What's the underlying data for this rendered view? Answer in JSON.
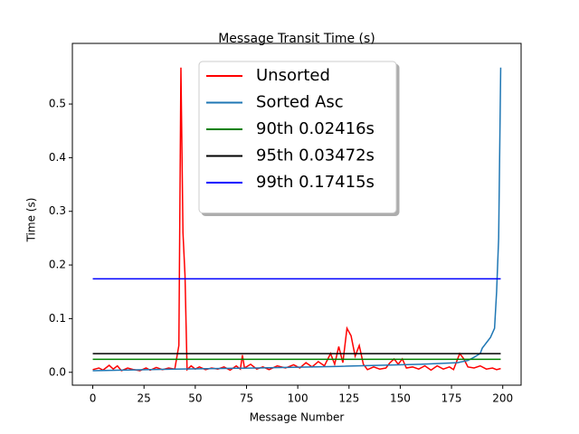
{
  "chart_data": {
    "type": "line",
    "title": "Message Transit Time (s)",
    "x_label": "Message Number",
    "y_label": "Time (s)",
    "xlim": [
      -9.95,
      208.95
    ],
    "xticks": [
      0,
      25,
      50,
      75,
      100,
      125,
      150,
      175,
      200
    ],
    "ylim": [
      -0.024,
      0.613
    ],
    "yticks": [
      {
        "value": 0,
        "label": "0.0"
      },
      0.1,
      0.2,
      0.3,
      0.4,
      0.5
    ],
    "legend": "upper center",
    "series": [
      {
        "name": "Unsorted",
        "color": "#ff0000",
        "x": [
          0,
          3,
          5,
          8,
          10,
          12,
          14,
          17,
          20,
          23,
          26,
          28,
          31,
          34,
          37,
          40,
          42,
          43,
          44,
          45,
          46,
          48,
          50,
          52,
          55,
          58,
          61,
          64,
          67,
          70,
          72,
          73,
          74,
          77,
          80,
          83,
          86,
          90,
          94,
          98,
          101,
          104,
          107,
          110,
          113,
          116,
          118,
          120,
          122,
          124,
          126,
          128,
          130,
          132,
          134,
          137,
          140,
          143,
          145,
          147,
          149,
          151,
          153,
          156,
          159,
          162,
          165,
          168,
          171,
          174,
          176,
          179,
          181,
          183,
          186,
          189,
          192,
          195,
          197,
          199
        ],
        "values": [
          0.005,
          0.008,
          0.004,
          0.013,
          0.006,
          0.012,
          0.003,
          0.008,
          0.005,
          0.003,
          0.008,
          0.004,
          0.009,
          0.005,
          0.008,
          0.006,
          0.05,
          0.568,
          0.26,
          0.18,
          0.005,
          0.012,
          0.006,
          0.01,
          0.005,
          0.008,
          0.006,
          0.01,
          0.004,
          0.012,
          0.006,
          0.032,
          0.008,
          0.015,
          0.006,
          0.01,
          0.005,
          0.012,
          0.008,
          0.014,
          0.008,
          0.018,
          0.01,
          0.02,
          0.012,
          0.035,
          0.015,
          0.048,
          0.018,
          0.082,
          0.068,
          0.03,
          0.05,
          0.015,
          0.005,
          0.01,
          0.006,
          0.008,
          0.018,
          0.025,
          0.015,
          0.025,
          0.008,
          0.01,
          0.006,
          0.012,
          0.004,
          0.012,
          0.006,
          0.01,
          0.005,
          0.035,
          0.025,
          0.01,
          0.008,
          0.012,
          0.006,
          0.008,
          0.005,
          0.007
        ]
      },
      {
        "name": "Sorted Asc",
        "color": "#1f77b4",
        "x": [
          0,
          40,
          80,
          120,
          160,
          178,
          183,
          186,
          189,
          190,
          192,
          194,
          196,
          197,
          198,
          199
        ],
        "values": [
          0.003,
          0.006,
          0.008,
          0.011,
          0.015,
          0.018,
          0.022,
          0.028,
          0.035,
          0.045,
          0.055,
          0.065,
          0.082,
          0.15,
          0.25,
          0.568
        ]
      },
      {
        "name": "90th 0.02416s",
        "color": "#008000",
        "x": [
          0,
          199
        ],
        "values": [
          0.02416,
          0.02416
        ]
      },
      {
        "name": "95th 0.03472s",
        "color": "#000000",
        "x": [
          0,
          199
        ],
        "values": [
          0.03472,
          0.03472
        ]
      },
      {
        "name": "99th 0.17415s",
        "color": "#0000ff",
        "x": [
          0,
          199
        ],
        "values": [
          0.17415,
          0.17415
        ]
      }
    ]
  }
}
